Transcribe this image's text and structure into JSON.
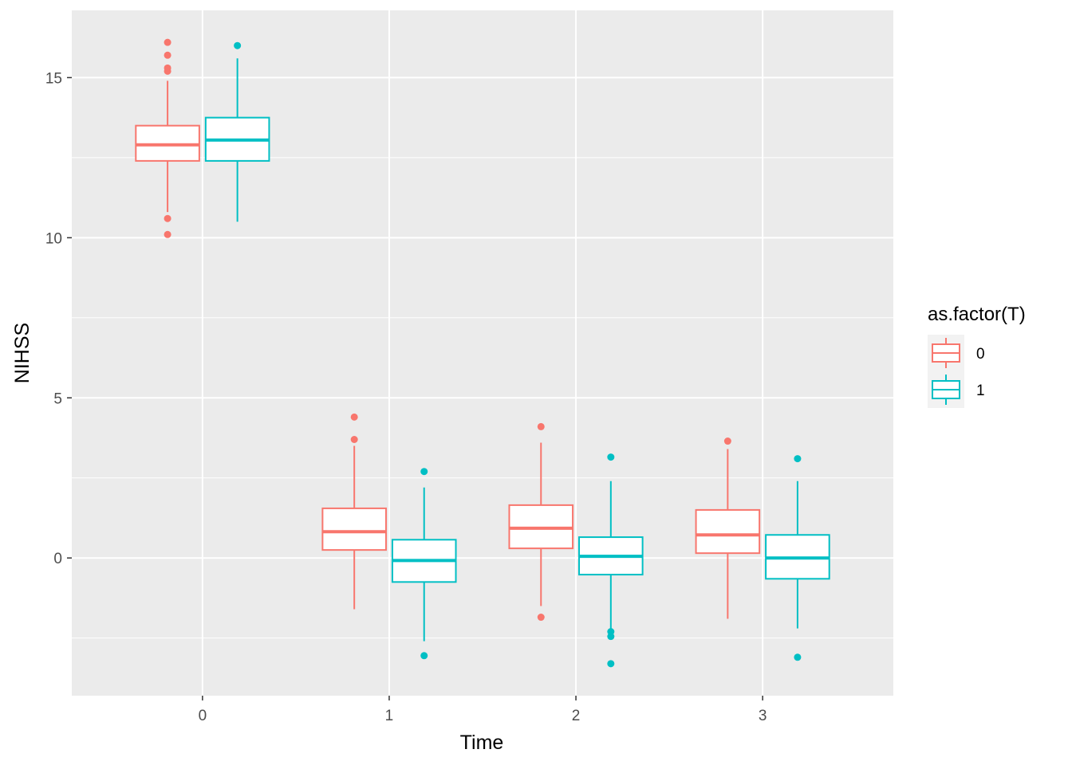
{
  "chart_data": {
    "type": "boxplot",
    "title": "",
    "xlabel": "Time",
    "ylabel": "NIHSS",
    "categories": [
      "0",
      "1",
      "2",
      "3"
    ],
    "ylim": [
      -4.3,
      17.1
    ],
    "y_ticks": [
      0,
      5,
      10,
      15
    ],
    "grid": true,
    "legend": {
      "title": "as.factor(T)",
      "position": "right",
      "entries": [
        "0",
        "1"
      ]
    },
    "series": [
      {
        "name": "0",
        "color": "#f8766d",
        "boxes": [
          {
            "category": "0",
            "lower_whisker": 10.8,
            "q1": 12.4,
            "median": 12.9,
            "q3": 13.5,
            "upper_whisker": 14.9,
            "outliers": [
              16.1,
              15.7,
              15.3,
              15.2,
              10.6,
              10.1
            ]
          },
          {
            "category": "1",
            "lower_whisker": -1.6,
            "q1": 0.25,
            "median": 0.82,
            "q3": 1.55,
            "upper_whisker": 3.5,
            "outliers": [
              4.4,
              3.7
            ]
          },
          {
            "category": "2",
            "lower_whisker": -1.5,
            "q1": 0.3,
            "median": 0.93,
            "q3": 1.65,
            "upper_whisker": 3.6,
            "outliers": [
              4.1,
              -1.85
            ]
          },
          {
            "category": "3",
            "lower_whisker": -1.9,
            "q1": 0.15,
            "median": 0.72,
            "q3": 1.5,
            "upper_whisker": 3.4,
            "outliers": [
              3.65
            ]
          }
        ]
      },
      {
        "name": "1",
        "color": "#00bfc4",
        "boxes": [
          {
            "category": "0",
            "lower_whisker": 10.5,
            "q1": 12.4,
            "median": 13.05,
            "q3": 13.75,
            "upper_whisker": 15.6,
            "outliers": [
              16.0
            ]
          },
          {
            "category": "1",
            "lower_whisker": -2.6,
            "q1": -0.75,
            "median": -0.08,
            "q3": 0.57,
            "upper_whisker": 2.2,
            "outliers": [
              2.7,
              -3.05
            ]
          },
          {
            "category": "2",
            "lower_whisker": -2.2,
            "q1": -0.52,
            "median": 0.05,
            "q3": 0.65,
            "upper_whisker": 2.4,
            "outliers": [
              3.15,
              -2.3,
              -2.45,
              -3.3
            ]
          },
          {
            "category": "3",
            "lower_whisker": -2.2,
            "q1": -0.65,
            "median": 0.0,
            "q3": 0.72,
            "upper_whisker": 2.4,
            "outliers": [
              3.1,
              -3.1
            ]
          }
        ]
      }
    ]
  }
}
